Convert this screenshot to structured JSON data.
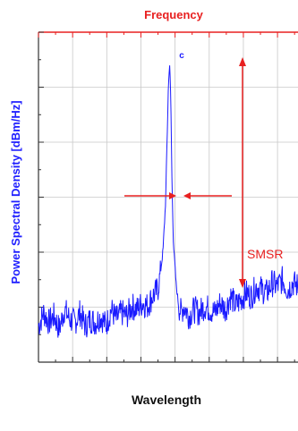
{
  "chart_data": {
    "type": "line",
    "top_axis_label": "Frequency",
    "xlabel": "Wavelength",
    "ylabel": "Power Spectral Density [dBm/Hz]",
    "peak_label": "c",
    "annotation": "SMSR",
    "grid": true,
    "ylim": [
      0,
      1
    ],
    "series": [
      {
        "x": [
          0,
          0.02,
          0.04,
          0.06,
          0.08,
          0.1,
          0.12,
          0.14,
          0.16,
          0.18,
          0.2,
          0.22,
          0.24,
          0.26,
          0.28,
          0.3,
          0.32,
          0.34,
          0.36,
          0.38,
          0.4,
          0.42,
          0.44,
          0.46,
          0.47,
          0.48,
          0.49,
          0.5,
          0.505,
          0.51,
          0.515,
          0.52,
          0.53,
          0.54,
          0.55,
          0.56,
          0.58,
          0.6,
          0.62,
          0.64,
          0.66,
          0.68,
          0.7,
          0.72,
          0.74,
          0.76,
          0.78,
          0.8,
          0.82,
          0.84,
          0.86,
          0.88,
          0.9,
          0.92,
          0.94,
          0.96,
          0.98,
          1.0
        ],
        "values": [
          0.11,
          0.15,
          0.12,
          0.14,
          0.1,
          0.16,
          0.13,
          0.12,
          0.15,
          0.11,
          0.13,
          0.12,
          0.14,
          0.11,
          0.16,
          0.13,
          0.15,
          0.14,
          0.17,
          0.16,
          0.18,
          0.17,
          0.2,
          0.22,
          0.27,
          0.34,
          0.49,
          0.82,
          0.91,
          0.79,
          0.52,
          0.36,
          0.24,
          0.17,
          0.15,
          0.17,
          0.14,
          0.16,
          0.15,
          0.17,
          0.16,
          0.15,
          0.18,
          0.16,
          0.2,
          0.17,
          0.19,
          0.21,
          0.2,
          0.23,
          0.22,
          0.21,
          0.24,
          0.23,
          0.25,
          0.22,
          0.24,
          0.23
        ]
      }
    ],
    "colors": {
      "trace": "#1a1aff",
      "axis_label": "#2020ff",
      "top_axis": "#e82020",
      "annotation": "#e82020",
      "grid": "#c8c8c8"
    }
  }
}
